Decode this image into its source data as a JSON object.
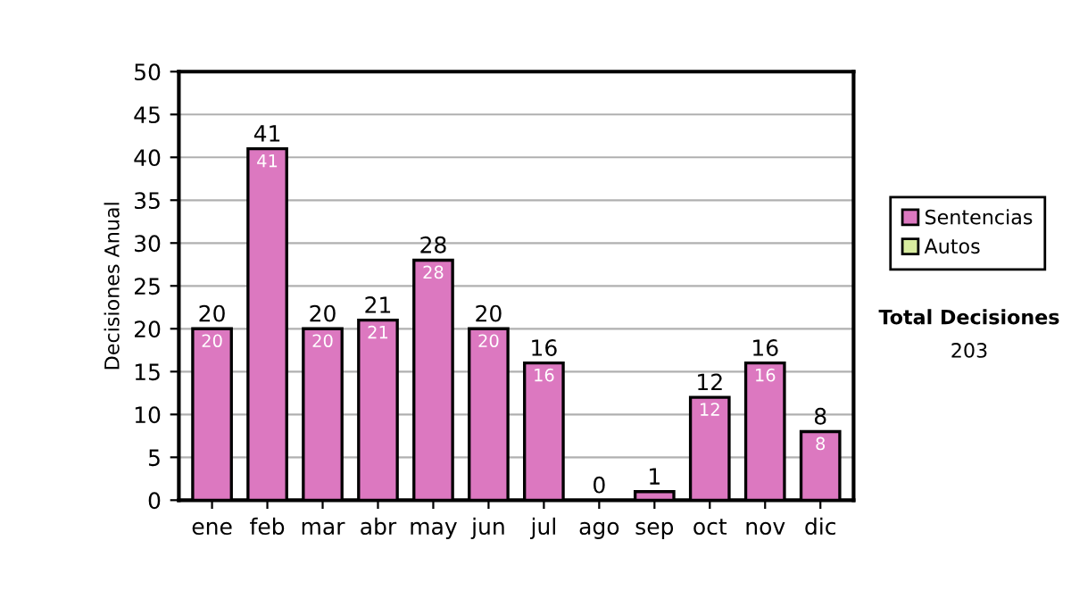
{
  "chart_data": {
    "type": "bar",
    "ylabel": "Decisiones Anual",
    "stacked": true,
    "categories": [
      "ene",
      "feb",
      "mar",
      "abr",
      "may",
      "jun",
      "jul",
      "ago",
      "sep",
      "oct",
      "nov",
      "dic"
    ],
    "series": [
      {
        "name": "Sentencias",
        "color": "#dc78c0",
        "values": [
          20,
          41,
          20,
          21,
          28,
          20,
          16,
          0,
          1,
          12,
          16,
          8
        ],
        "value_labels": [
          "20",
          "41",
          "20",
          "21",
          "28",
          "20",
          "16",
          null,
          null,
          "12",
          "16",
          "8"
        ]
      },
      {
        "name": "Autos",
        "color": "#d8ecA0",
        "values": [
          0,
          0,
          0,
          0,
          0,
          0,
          0,
          0,
          0,
          0,
          0,
          0
        ]
      }
    ],
    "totals": [
      "20",
      "41",
      "20",
      "21",
      "28",
      "20",
      "16",
      "0",
      "1",
      "12",
      "16",
      "8"
    ],
    "ylim": [
      0,
      50
    ],
    "yticks": [
      0,
      5,
      10,
      15,
      20,
      25,
      30,
      35,
      40,
      45,
      50
    ],
    "grid": "y",
    "legend": "right",
    "annotations": [
      "Total Decisiones",
      "203"
    ]
  }
}
